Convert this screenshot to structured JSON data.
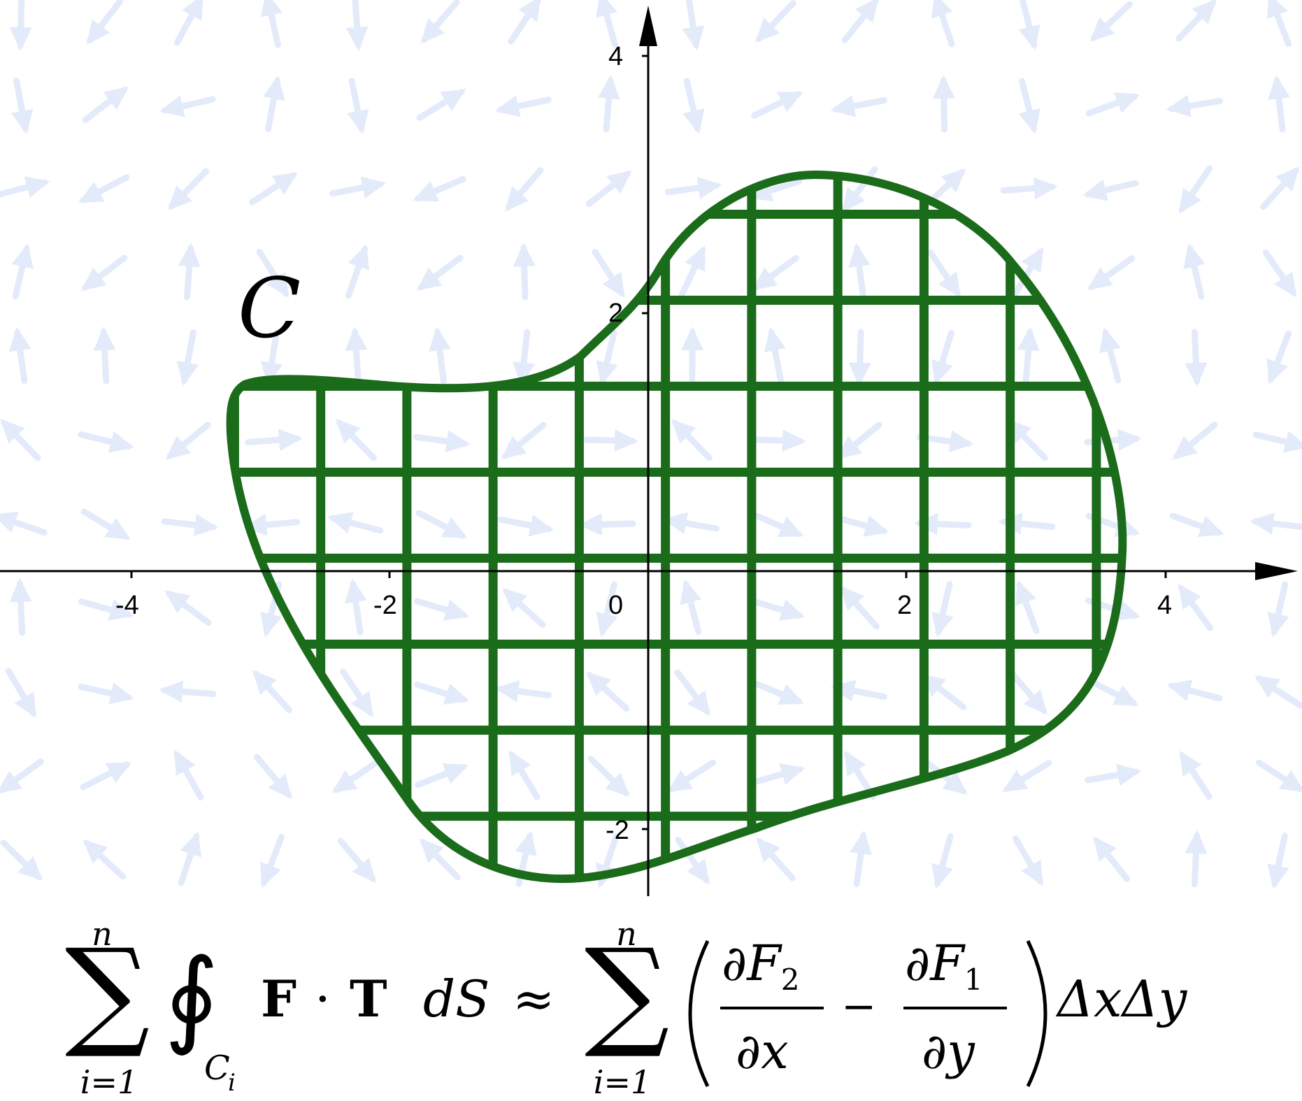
{
  "colors": {
    "region": "#1a6b1a",
    "field_arrow": "#e3ebfa",
    "axis": "#000000"
  },
  "axes": {
    "x_ticks": [
      "-4",
      "-2",
      "0",
      "2",
      "4"
    ],
    "y_ticks": [
      "4",
      "2",
      "-2"
    ],
    "x_range": [
      -5,
      5
    ],
    "y_range": [
      -2.5,
      4.3
    ]
  },
  "curve": {
    "label": "C"
  },
  "grid": {
    "spacing": 0.6667
  },
  "equation": {
    "sum_upper": "n",
    "sum_lower": "i=1",
    "integral": "∮",
    "integral_sub": "C",
    "integral_sub_index": "i",
    "integrand_F": "F",
    "dot": "·",
    "integrand_T": "T",
    "dS": "dS",
    "approx": "≈",
    "rhs_sum_upper": "n",
    "rhs_sum_lower": "i=1",
    "partial": "∂",
    "F2": "F",
    "F2_sub": "2",
    "F1": "F",
    "F1_sub": "1",
    "dx": "x",
    "dy": "y",
    "minus": "−",
    "area_element": "ΔxΔy"
  }
}
